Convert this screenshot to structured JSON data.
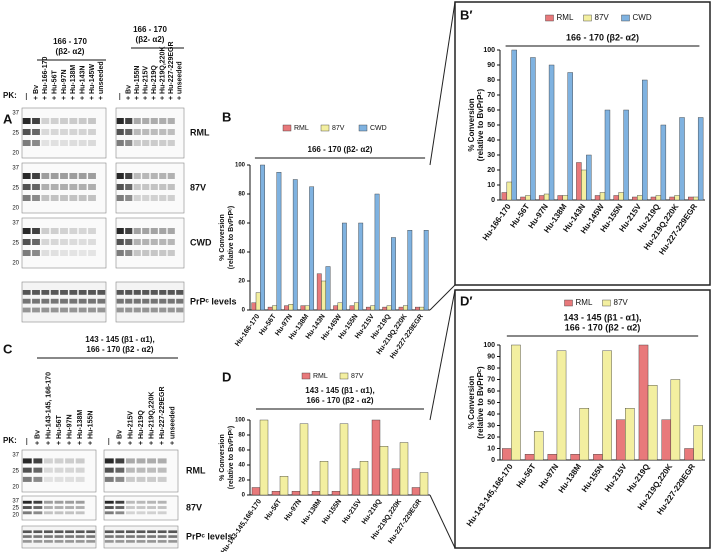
{
  "panel_labels": [
    "A",
    "B",
    "B′",
    "C",
    "D",
    "D′"
  ],
  "blots": [
    {
      "pk": "PK:",
      "header": [
        "166 - 170",
        "(β2- α2)"
      ],
      "header2": [
        "166 - 170",
        "(β2- α2)"
      ],
      "groups": [
        [
          "—",
          "+ Bv",
          "+ Hu-166-170",
          "+ Hu-56T",
          "+ Hu-97N",
          "+ Hu-138M",
          "+ Hu-143N",
          "+ Hu-145W",
          "+ unseeded"
        ],
        [
          "—",
          "+ Bv",
          "+ Hu-155N",
          "+ Hu-215V",
          "+ Hu-219Q",
          "+ Hu-219Q,220K",
          "+ Hu-227-229EGR",
          "+ unseeded"
        ]
      ],
      "rows": [
        "RML",
        "87V",
        "CWD",
        "PrPᶜ levels"
      ],
      "mw_markers": [
        "37",
        "25",
        "20"
      ]
    },
    {
      "pk": "PK:",
      "header": [
        "143 - 145 (β1 - α1),",
        "166 - 170 (β2 - α2)"
      ],
      "groups": [
        [
          "—",
          "+ Bv",
          "+ Hu-143-145, 166-170",
          "+ Hu-56T",
          "+ Hu-97N",
          "+ Hu-138M",
          "+ Hu-155N"
        ],
        [
          "—",
          "+ Bv",
          "+ Hu-215V",
          "+ Hu-219Q",
          "+ Hu-219Q,220K",
          "+ Hu-227-229EGR",
          "+ unseeded"
        ]
      ],
      "rows": [
        "RML",
        "87V",
        "PrPᶜ levels"
      ],
      "mw_markers": [
        "37",
        "25",
        "20"
      ]
    }
  ],
  "chart_data": [
    {
      "type": "bar",
      "y_label": [
        "% Conversion",
        "(relative to BvPrPᶜ)"
      ],
      "bracket": [
        "166 - 170  (β2- α2)"
      ],
      "categories": [
        "Hu-166-170",
        "Hu-56T",
        "Hu-97N",
        "Hu-138M",
        "Hu-143N",
        "Hu-145W",
        "Hu-155N",
        "Hu-215V",
        "Hu-219Q",
        "Hu-219Q,220K",
        "Hu-227-229EGR"
      ],
      "series": [
        {
          "name": "RML",
          "color": "#e8797b",
          "values": [
            5,
            2,
            3,
            3,
            25,
            3,
            3,
            2,
            2,
            2,
            2
          ]
        },
        {
          "name": "87V",
          "color": "#f3efa0",
          "values": [
            12,
            3,
            4,
            3,
            20,
            5,
            5,
            3,
            3,
            3,
            2
          ]
        },
        {
          "name": "CWD",
          "color": "#7fb2e0",
          "values": [
            100,
            95,
            90,
            85,
            30,
            60,
            60,
            80,
            50,
            55,
            55
          ]
        }
      ],
      "ylim": [
        0,
        100
      ],
      "yticks": [
        0,
        20,
        40,
        60,
        80,
        100
      ]
    },
    {
      "type": "bar",
      "y_label": [
        "% Conversion",
        "(relative to BvPrPᶜ)"
      ],
      "bracket": [
        "166 - 170  (β2- α2)"
      ],
      "categories": [
        "Hu-166-170",
        "Hu-56T",
        "Hu-97N",
        "Hu-138M",
        "Hu-143N",
        "Hu-145W",
        "Hu-155N",
        "Hu-215V",
        "Hu-219Q",
        "Hu-219Q,220K",
        "Hu-227-229EGR"
      ],
      "series": [
        {
          "name": "RML",
          "color": "#e8797b",
          "values": [
            5,
            2,
            3,
            3,
            25,
            3,
            3,
            2,
            2,
            2,
            2
          ]
        },
        {
          "name": "87V",
          "color": "#f3efa0",
          "values": [
            12,
            3,
            4,
            3,
            20,
            5,
            5,
            3,
            3,
            3,
            2
          ]
        },
        {
          "name": "CWD",
          "color": "#7fb2e0",
          "values": [
            100,
            95,
            90,
            85,
            30,
            60,
            60,
            80,
            50,
            55,
            55
          ]
        }
      ],
      "ylim": [
        0,
        100
      ],
      "yticks": [
        0,
        10,
        20,
        30,
        40,
        50,
        60,
        70,
        80,
        90,
        100
      ]
    },
    {
      "type": "bar",
      "y_label": [
        "% Conversion",
        "(relative to BvPrPᶜ)"
      ],
      "bracket": [
        "143 - 145 (β1 - α1),",
        "166 - 170 (β2 - α2)"
      ],
      "categories": [
        "Hu-143-145,166-170",
        "Hu-56T",
        "Hu-97N",
        "Hu-138M",
        "Hu-155N",
        "Hu-215V",
        "Hu-219Q",
        "Hu-219Q,220K",
        "Hu-227-229EGR"
      ],
      "series": [
        {
          "name": "RML",
          "color": "#e8797b",
          "values": [
            10,
            5,
            5,
            5,
            5,
            35,
            100,
            35,
            10
          ]
        },
        {
          "name": "87V",
          "color": "#f3efa0",
          "values": [
            100,
            25,
            95,
            45,
            95,
            45,
            65,
            70,
            30
          ]
        }
      ],
      "ylim": [
        0,
        100
      ],
      "yticks": [
        0,
        20,
        40,
        60,
        80,
        100
      ]
    },
    {
      "type": "bar",
      "y_label": [
        "% Conversion",
        "(relative to BvPrPᶜ)"
      ],
      "bracket": [
        "143 - 145 (β1 - α1),",
        "166 - 170 (β2 - α2)"
      ],
      "categories": [
        "Hu-143-145,166-170",
        "Hu-56T",
        "Hu-97N",
        "Hu-138M",
        "Hu-155N",
        "Hu-215V",
        "Hu-219Q",
        "Hu-219Q,220K",
        "Hu-227-229EGR"
      ],
      "series": [
        {
          "name": "RML",
          "color": "#e8797b",
          "values": [
            10,
            5,
            5,
            5,
            5,
            35,
            100,
            35,
            10
          ]
        },
        {
          "name": "87V",
          "color": "#f3efa0",
          "values": [
            100,
            25,
            95,
            45,
            95,
            45,
            65,
            70,
            30
          ]
        }
      ],
      "ylim": [
        0,
        100
      ],
      "yticks": [
        0,
        10,
        20,
        30,
        40,
        50,
        60,
        70,
        80,
        90,
        100
      ]
    }
  ]
}
